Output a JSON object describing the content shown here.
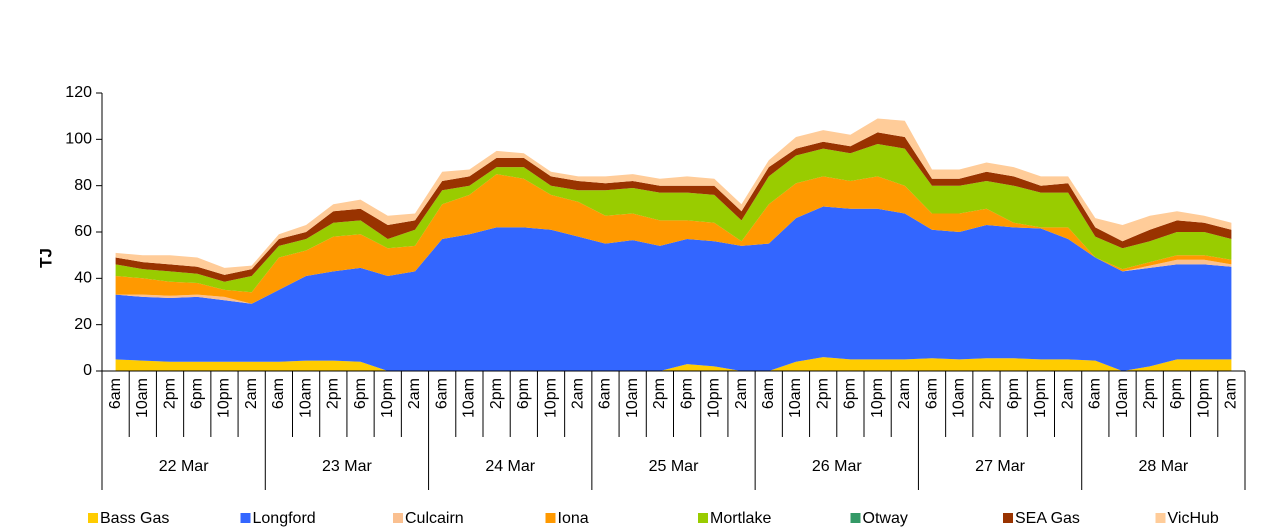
{
  "chart_data": {
    "type": "stacked_area",
    "y_label": "TJ",
    "categories": [
      "6am",
      "10am",
      "2pm",
      "6pm",
      "10pm",
      "2am",
      "6am",
      "10am",
      "2pm",
      "6pm",
      "10pm",
      "2am",
      "6am",
      "10am",
      "2pm",
      "6pm",
      "10pm",
      "2am",
      "6am",
      "10am",
      "2pm",
      "6pm",
      "10pm",
      "2am",
      "6am",
      "10am",
      "2pm",
      "6pm",
      "10pm",
      "2am",
      "6am",
      "10am",
      "2pm",
      "6pm",
      "10pm",
      "2am",
      "6am",
      "10am",
      "2pm",
      "6pm",
      "10pm",
      "2am"
    ],
    "groups": [
      "22 Mar",
      "23 Mar",
      "24 Mar",
      "25 Mar",
      "26 Mar",
      "27 Mar",
      "28 Mar"
    ],
    "ylim": [
      0,
      120
    ],
    "yticks": [
      0,
      20,
      40,
      60,
      80,
      100,
      120
    ],
    "grid": false,
    "legend": "bottom",
    "series": [
      {
        "name": "Bass Gas",
        "color": "#ffcc00",
        "values": [
          5,
          4.5,
          4,
          4,
          4,
          4,
          4,
          4.5,
          4.5,
          4,
          0,
          0,
          0,
          0,
          0,
          0,
          0,
          0,
          0,
          0,
          0,
          3,
          2,
          0,
          0,
          4,
          6,
          5,
          5,
          5,
          5.5,
          5,
          5.5,
          5.5,
          5,
          5,
          4.5,
          0,
          2,
          5,
          5,
          5
        ]
      },
      {
        "name": "Longford",
        "color": "#3366ff",
        "values": [
          28,
          27.5,
          27.5,
          28,
          26.5,
          25,
          31,
          36.5,
          38.5,
          40.5,
          41,
          43,
          57,
          59,
          62,
          62,
          61,
          58,
          55,
          56.5,
          54,
          54,
          54,
          54,
          55,
          62,
          65,
          65,
          65,
          63,
          55.5,
          55,
          57.5,
          56.5,
          56.5,
          52,
          44.5,
          43,
          42.5,
          41,
          41,
          40
        ]
      },
      {
        "name": "Culcairn",
        "color": "#fac090",
        "values": [
          0,
          1,
          1,
          1,
          1.5,
          0,
          0,
          0,
          0,
          0,
          0,
          0,
          0,
          0,
          0,
          0,
          0,
          0,
          0,
          0,
          0,
          0,
          0,
          0,
          0,
          0,
          0,
          0,
          0,
          0,
          0,
          0,
          0,
          0,
          0,
          0,
          0,
          0,
          1,
          2,
          2,
          1
        ]
      },
      {
        "name": "Iona",
        "color": "#ff9900",
        "values": [
          8,
          7,
          6,
          5,
          3,
          5,
          14,
          11,
          15,
          14.5,
          12,
          11,
          15,
          17,
          23,
          21,
          15,
          15,
          12,
          11.5,
          11,
          8,
          8,
          2,
          17,
          15,
          13,
          12,
          14,
          12,
          7,
          8,
          7,
          2,
          0.5,
          5,
          0,
          1,
          1.5,
          2,
          2,
          2
        ]
      },
      {
        "name": "Mortlake",
        "color": "#99cc00",
        "values": [
          5,
          4,
          4.5,
          4,
          3.5,
          7,
          5,
          5,
          6,
          6,
          4,
          7,
          6,
          4,
          3,
          5,
          4,
          5,
          11,
          11,
          12,
          12,
          12,
          9,
          12,
          12,
          12,
          12,
          14,
          16,
          12,
          12,
          12,
          16,
          15,
          15,
          9,
          9,
          9,
          10,
          10,
          9
        ]
      },
      {
        "name": "Otway",
        "color": "#339966",
        "values": [
          0,
          0,
          0,
          0,
          0,
          0,
          0,
          0,
          0,
          0,
          0,
          0,
          0,
          0,
          0,
          0,
          0,
          0,
          0,
          0,
          0,
          0,
          0,
          0,
          0,
          0,
          0,
          0,
          0,
          0,
          0,
          0,
          0,
          0,
          0,
          0,
          0,
          0,
          0,
          0,
          0,
          0
        ]
      },
      {
        "name": "SEA Gas",
        "color": "#993300",
        "values": [
          3,
          3,
          3,
          3,
          3,
          3,
          3,
          3,
          5,
          5,
          6,
          4,
          4,
          4,
          4,
          4,
          4,
          4,
          3,
          3,
          3,
          3,
          4,
          4,
          4,
          3,
          3,
          3,
          5,
          5,
          3,
          3,
          4,
          4,
          3,
          4,
          4,
          3,
          5,
          5,
          4,
          4
        ]
      },
      {
        "name": "VicHub",
        "color": "#ffcc99",
        "values": [
          2,
          3,
          4,
          4,
          3,
          1.5,
          2,
          3,
          3,
          4,
          4,
          3,
          4,
          3,
          3,
          2,
          2,
          2,
          3,
          3,
          3,
          4,
          3,
          3,
          3,
          5,
          5,
          5,
          6,
          7,
          4,
          4,
          4,
          4,
          4,
          3,
          4,
          7,
          6,
          4,
          3,
          3
        ]
      }
    ]
  }
}
